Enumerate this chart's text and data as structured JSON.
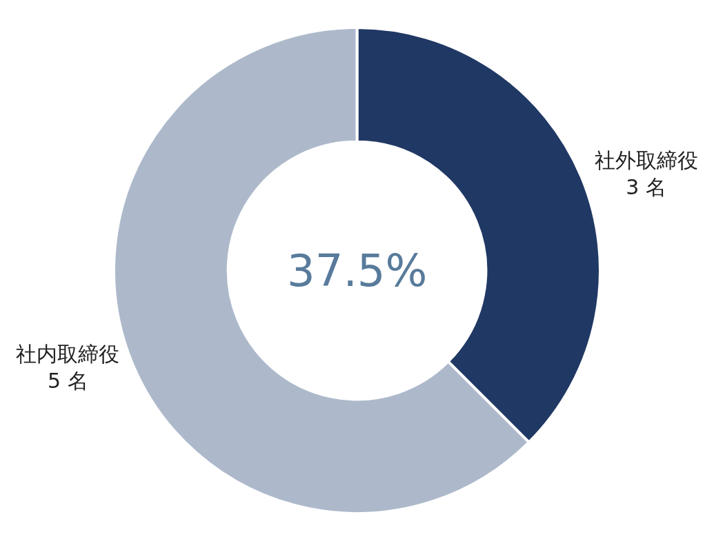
{
  "chart_data": {
    "type": "donut",
    "categories": [
      "社外取締役",
      "社内取締役"
    ],
    "values": [
      3,
      5
    ],
    "value_labels": [
      "3 名",
      "5 名"
    ],
    "colors": [
      "#203864",
      "#adb9cb"
    ],
    "annotations": [
      "37.5%"
    ],
    "legend": false
  }
}
